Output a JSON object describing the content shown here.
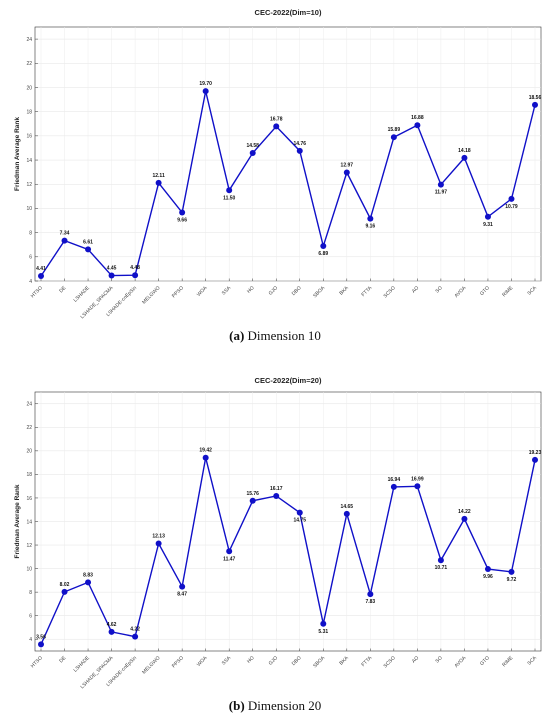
{
  "chart_data": [
    {
      "type": "line",
      "title": "CEC-2022(Dim=10)",
      "xlabel": "",
      "ylabel": "Friedman Average Rank",
      "ylim": [
        4,
        25
      ],
      "yticks": [
        4,
        6,
        8,
        10,
        12,
        14,
        16,
        18,
        20,
        22,
        24
      ],
      "grid": true,
      "color": "#1010c8",
      "categories": [
        "HTSO",
        "DE",
        "LSHADE",
        "LSHADE_SPACMA",
        "LSHADE-cnEpSin",
        "MELGWO",
        "PPSO",
        "WOA",
        "SSA",
        "HO",
        "GJO",
        "DBO",
        "SBOA",
        "BKA",
        "FTTA",
        "SCSO",
        "AO",
        "SO",
        "AVOA",
        "GTO",
        "RIME",
        "SCA"
      ],
      "values": [
        4.41,
        7.34,
        6.61,
        4.45,
        4.48,
        12.11,
        9.66,
        19.7,
        11.5,
        14.58,
        16.78,
        14.76,
        6.89,
        12.97,
        9.16,
        15.89,
        16.88,
        11.97,
        14.18,
        9.31,
        10.79,
        18.56
      ],
      "labels": [
        "4.41",
        "7.34",
        "6.61",
        "4.45",
        "4.48",
        "12.11",
        "9.66",
        "19.70",
        "11.50",
        "14.58",
        "16.78",
        "14.76",
        "6.89",
        "12.97",
        "9.16",
        "15.89",
        "16.88",
        "11.97",
        "14.18",
        "9.31",
        "10.79",
        "18.56"
      ],
      "caption_tag": "(a)",
      "caption_text": "Dimension 10"
    },
    {
      "type": "line",
      "title": "CEC-2022(Dim=20)",
      "xlabel": "",
      "ylabel": "Friedman Average Rank",
      "ylim": [
        3,
        25
      ],
      "yticks": [
        4,
        6,
        8,
        10,
        12,
        14,
        16,
        18,
        20,
        22,
        24
      ],
      "grid": true,
      "color": "#1010c8",
      "categories": [
        "HTSO",
        "DE",
        "LSHADE",
        "LSHADE_SPACMA",
        "LSHADE-cnEpSin",
        "MELGWO",
        "PPSO",
        "WOA",
        "SSA",
        "HO",
        "GJO",
        "DBO",
        "SBOA",
        "BKA",
        "FTTA",
        "SCSO",
        "AO",
        "SO",
        "AVOA",
        "GTO",
        "RIME",
        "SCA"
      ],
      "values": [
        3.56,
        8.02,
        8.83,
        4.62,
        4.22,
        12.13,
        8.47,
        19.42,
        11.47,
        15.76,
        16.17,
        14.75,
        5.31,
        14.65,
        7.83,
        16.94,
        16.99,
        10.71,
        14.22,
        9.96,
        9.72,
        19.23
      ],
      "labels": [
        "3.56",
        "8.02",
        "8.83",
        "4.62",
        "4.22",
        "12.13",
        "8.47",
        "19.42",
        "11.47",
        "15.76",
        "16.17",
        "14.75",
        "5.31",
        "14.65",
        "7.83",
        "16.94",
        "16.99",
        "10.71",
        "14.22",
        "9.96",
        "9.72",
        "19.23"
      ],
      "caption_tag": "(b)",
      "caption_text": "Dimension 20"
    }
  ]
}
